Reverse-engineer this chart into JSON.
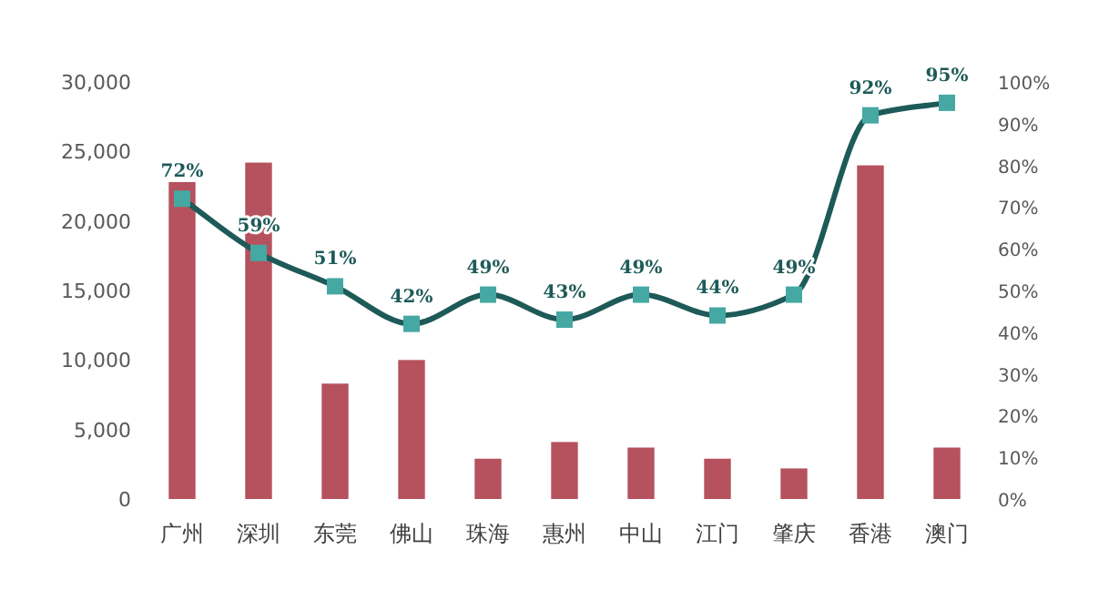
{
  "chart_data": {
    "type": "bar",
    "categories": [
      "广州",
      "深圳",
      "东莞",
      "佛山",
      "珠海",
      "惠州",
      "中山",
      "江门",
      "肇庆",
      "香港",
      "澳门"
    ],
    "series": [
      {
        "color": "#b5525e",
        "values": [
          22800,
          24200,
          8300,
          10000,
          2900,
          4100,
          3700,
          2900,
          2200,
          24000,
          3700
        ]
      },
      {
        "type": "line",
        "axis": "y2",
        "color": "#1d5a58",
        "colors": [
          "#45a8a3",
          "#45a8a3",
          "#45a8a3",
          "#45a8a3",
          "#45a8a3",
          "#45a8a3",
          "#45a8a3",
          "#45a8a3",
          "#45a8a3",
          "#45a8a3",
          "#45a8a3"
        ],
        "marker": "square",
        "values": [
          72,
          59,
          51,
          42,
          49,
          43,
          49,
          44,
          49,
          92,
          95
        ],
        "value_labels": [
          "72%",
          "59%",
          "51%",
          "42%",
          "49%",
          "43%",
          "49%",
          "44%",
          "49%",
          "92%",
          "95%"
        ]
      }
    ],
    "ylim": [
      0,
      30000
    ],
    "yticks": [
      0,
      {
        "value": 5000,
        "label": "5,000"
      },
      {
        "value": 10000,
        "label": "10,000"
      },
      {
        "value": 15000,
        "label": "15,000"
      },
      {
        "value": 20000,
        "label": "20,000"
      },
      {
        "value": 25000,
        "label": "25,000"
      },
      {
        "value": 30000,
        "label": "30,000"
      }
    ],
    "y2lim": [
      0,
      100
    ],
    "y2ticks": [
      {
        "value": 0,
        "label": "0%"
      },
      {
        "value": 10,
        "label": "10%"
      },
      {
        "value": 20,
        "label": "20%"
      },
      {
        "value": 30,
        "label": "30%"
      },
      {
        "value": 40,
        "label": "40%"
      },
      {
        "value": 50,
        "label": "50%"
      },
      {
        "value": 60,
        "label": "60%"
      },
      {
        "value": 70,
        "label": "70%"
      },
      {
        "value": 80,
        "label": "80%"
      },
      {
        "value": 90,
        "label": "90%"
      },
      {
        "value": 100,
        "label": "100%"
      }
    ],
    "grid": false
  }
}
